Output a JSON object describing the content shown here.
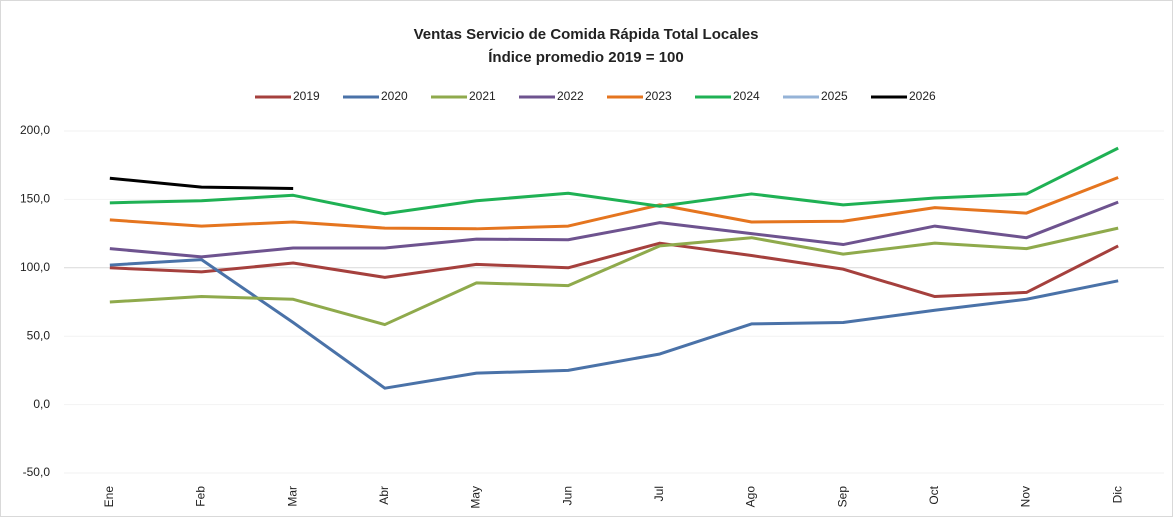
{
  "chart_data": {
    "type": "line",
    "title": "Ventas Servicio de Comida Rápida Total Locales",
    "subtitle": "Índice promedio 2019 = 100",
    "categories": [
      "Ene",
      "Feb",
      "Mar",
      "Abr",
      "May",
      "Jun",
      "Jul",
      "Ago",
      "Sep",
      "Oct",
      "Nov",
      "Dic"
    ],
    "series": [
      {
        "name": "2019",
        "color": "#a5403d",
        "values": [
          100,
          97,
          103.5,
          93,
          102.5,
          100,
          118,
          109,
          99,
          79,
          82,
          116
        ]
      },
      {
        "name": "2020",
        "color": "#4a72a8",
        "values": [
          102,
          106,
          60,
          12,
          23,
          25,
          37,
          59,
          60,
          69,
          77,
          90.5
        ]
      },
      {
        "name": "2021",
        "color": "#8faa4c",
        "values": [
          75,
          79,
          77,
          58.5,
          89,
          87,
          116,
          122,
          110,
          118,
          114,
          129
        ]
      },
      {
        "name": "2022",
        "color": "#6e538f",
        "values": [
          114,
          108,
          114.5,
          114.5,
          121,
          120.5,
          133,
          125,
          117,
          130.5,
          122,
          148
        ]
      },
      {
        "name": "2023",
        "color": "#e5751f",
        "values": [
          135,
          130.5,
          133.5,
          129,
          128.5,
          130.5,
          146,
          133.5,
          134,
          144,
          140,
          166
        ]
      },
      {
        "name": "2024",
        "color": "#1fb154",
        "values": [
          147.5,
          149,
          153,
          139.5,
          149,
          154.5,
          145,
          154,
          146,
          151,
          154,
          187.5
        ]
      },
      {
        "name": "2025",
        "color": "#95b3d7",
        "values": [
          null,
          null,
          null,
          null,
          null,
          null,
          null,
          null,
          null,
          null,
          null,
          null
        ]
      },
      {
        "name": "2026",
        "color": "#000000",
        "values": [
          165.5,
          159,
          158,
          null,
          null,
          null,
          null,
          null,
          null,
          null,
          null,
          null
        ]
      }
    ],
    "ylim": [
      -50,
      200
    ],
    "yticks": [
      {
        "value": -50,
        "label": "-50,0"
      },
      {
        "value": 0,
        "label": "0,0"
      },
      {
        "value": 50,
        "label": "50,0"
      },
      {
        "value": 100,
        "label": "100,0"
      },
      {
        "value": 150,
        "label": "150,0"
      },
      {
        "value": 200,
        "label": "200,0"
      }
    ],
    "grid": true,
    "legend": "top"
  }
}
